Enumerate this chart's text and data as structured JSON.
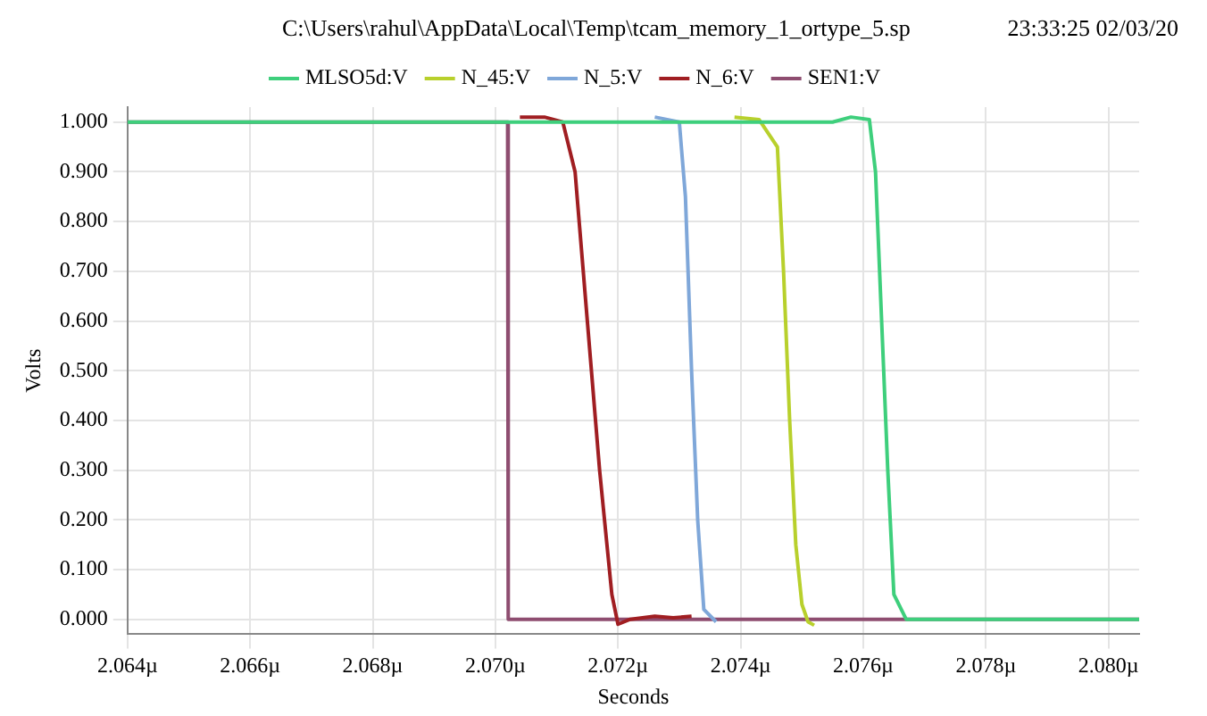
{
  "chart_data": {
    "type": "line",
    "xlabel": "Seconds",
    "ylabel": "Volts",
    "annotations": [
      "C:\\Users\\rahul\\AppData\\Local\\Temp\\tcam_memory_1_ortype_5.sp",
      "23:33:25 02/03/20"
    ],
    "xlim": [
      2.064,
      2.0805
    ],
    "ylim": [
      -0.03,
      1.03
    ],
    "xticks": [
      {
        "value": 2.064,
        "label": "2.064µ"
      },
      {
        "value": 2.066,
        "label": "2.066µ"
      },
      {
        "value": 2.068,
        "label": "2.068µ"
      },
      {
        "value": 2.07,
        "label": "2.070µ"
      },
      {
        "value": 2.072,
        "label": "2.072µ"
      },
      {
        "value": 2.074,
        "label": "2.074µ"
      },
      {
        "value": 2.076,
        "label": "2.076µ"
      },
      {
        "value": 2.078,
        "label": "2.078µ"
      },
      {
        "value": 2.08,
        "label": "2.080µ"
      }
    ],
    "yticks": [
      {
        "value": 0,
        "label": "0.000"
      },
      {
        "value": 0.1,
        "label": "0.100"
      },
      {
        "value": 0.2,
        "label": "0.200"
      },
      {
        "value": 0.3,
        "label": "0.300"
      },
      {
        "value": 0.4,
        "label": "0.400"
      },
      {
        "value": 0.5,
        "label": "0.500"
      },
      {
        "value": 0.6,
        "label": "0.600"
      },
      {
        "value": 0.7,
        "label": "0.700"
      },
      {
        "value": 0.8,
        "label": "0.800"
      },
      {
        "value": 0.9,
        "label": "0.900"
      },
      {
        "value": 1,
        "label": "1.000"
      }
    ],
    "grid": true,
    "legend": "top",
    "marker": "none",
    "line_style": "solid",
    "series": [
      {
        "name": "MLSO5d:V",
        "color": "#3ecf7c",
        "x": [
          2.064,
          2.0745,
          2.075,
          2.0755,
          2.0758,
          2.0761,
          2.0762,
          2.0763,
          2.0764,
          2.0765,
          2.0767,
          2.0775,
          2.0805
        ],
        "values": [
          1.0,
          1.0,
          1.0,
          1.0,
          1.01,
          1.005,
          0.9,
          0.6,
          0.3,
          0.05,
          0.0,
          0.0,
          0.0
        ]
      },
      {
        "name": "N_45:V",
        "color": "#b8d02c",
        "x": [
          2.0739,
          2.0743,
          2.0746,
          2.0747,
          2.0748,
          2.0749,
          2.075,
          2.0751,
          2.0752
        ],
        "values": [
          1.01,
          1.005,
          0.95,
          0.7,
          0.4,
          0.15,
          0.03,
          -0.005,
          -0.012
        ]
      },
      {
        "name": "N_5:V",
        "color": "#7fa7d9",
        "x": [
          2.0726,
          2.073,
          2.0731,
          2.0732,
          2.0733,
          2.0734,
          2.0736
        ],
        "values": [
          1.01,
          1.0,
          0.85,
          0.5,
          0.2,
          0.02,
          -0.005
        ]
      },
      {
        "name": "N_6:V",
        "color": "#a01e22",
        "x": [
          2.0704,
          2.0708,
          2.0711,
          2.0713,
          2.0715,
          2.0717,
          2.0719,
          2.072,
          2.0722,
          2.0726,
          2.0729,
          2.0732
        ],
        "values": [
          1.01,
          1.01,
          1.0,
          0.9,
          0.6,
          0.3,
          0.05,
          -0.01,
          0.0,
          0.006,
          0.003,
          0.006
        ]
      },
      {
        "name": "SEN1:V",
        "color": "#8e4d70",
        "x": [
          2.064,
          2.0702,
          2.07021,
          2.0805
        ],
        "values": [
          1.0,
          1.0,
          0.0,
          0.0
        ]
      }
    ]
  }
}
